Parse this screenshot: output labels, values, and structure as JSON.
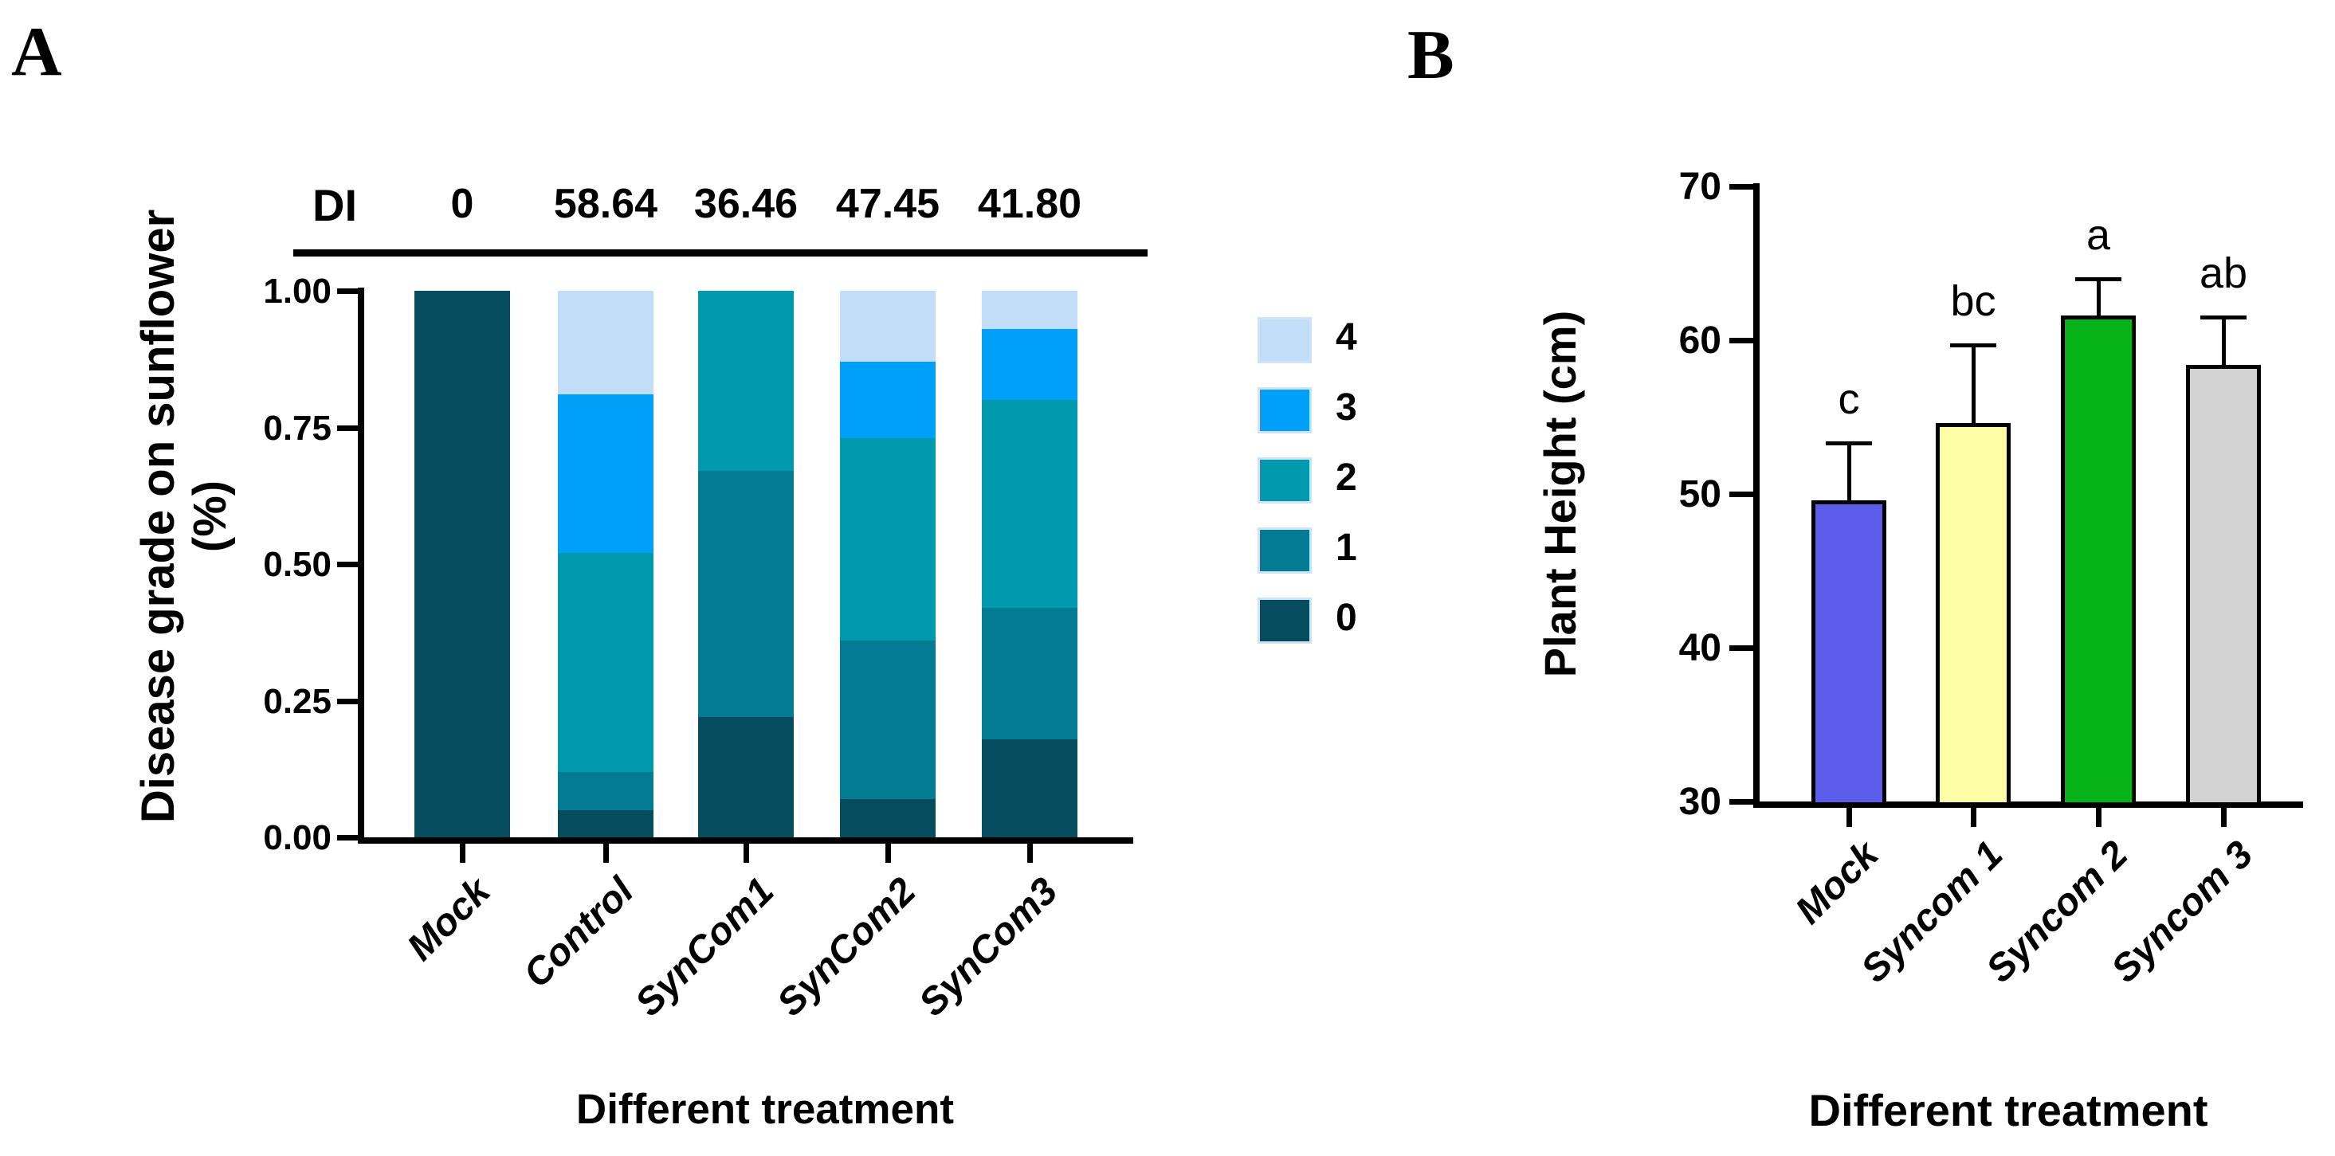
{
  "figure": {
    "panel_a_label": "A",
    "panel_b_label": "B"
  },
  "chart_data": [
    {
      "type": "stacked_bar",
      "title": "",
      "xlabel": "Different treatment",
      "ylabel": "Disease grade on sunflower",
      "ylabel_line2": "(%)",
      "ylim": [
        0,
        1
      ],
      "grid": false,
      "legend_position": "right",
      "yticks": [
        {
          "label": "1.00",
          "value": 1.0
        },
        {
          "label": "0.75",
          "value": 0.75
        },
        {
          "label": "0.50",
          "value": 0.5
        },
        {
          "label": "0.25",
          "value": 0.25
        },
        {
          "label": "0.00",
          "value": 0.0
        }
      ],
      "categories": [
        "Mock",
        "Control",
        "SynCom1",
        "SynCom2",
        "SynCom3"
      ],
      "di_header": "DI",
      "di_values": [
        "0",
        "58.64",
        "36.46",
        "47.45",
        "41.80"
      ],
      "series": [
        {
          "name": "0",
          "color": "#054c5e",
          "values": [
            1.0,
            0.05,
            0.22,
            0.07,
            0.18
          ]
        },
        {
          "name": "1",
          "color": "#037b92",
          "values": [
            0,
            0.07,
            0.45,
            0.29,
            0.24
          ]
        },
        {
          "name": "2",
          "color": "#0099ae",
          "values": [
            0,
            0.4,
            0.33,
            0.37,
            0.38
          ]
        },
        {
          "name": "3",
          "color": "#00a0f8",
          "values": [
            0,
            0.29,
            0,
            0.14,
            0.13
          ]
        },
        {
          "name": "4",
          "color": "#c2ddf7",
          "values": [
            0,
            0.19,
            0,
            0.13,
            0.07
          ]
        }
      ],
      "legend": [
        {
          "label": "4",
          "color": "#c2ddf7"
        },
        {
          "label": "3",
          "color": "#00a0f8"
        },
        {
          "label": "2",
          "color": "#0099ae"
        },
        {
          "label": "1",
          "color": "#037b92"
        },
        {
          "label": "0",
          "color": "#054c5e"
        }
      ]
    },
    {
      "type": "bar",
      "title": "",
      "xlabel": "Different treatment",
      "ylabel": "Plant Height (cm)",
      "ylim": [
        30,
        70
      ],
      "grid": false,
      "yticks": [
        {
          "label": "70",
          "value": 70
        },
        {
          "label": "60",
          "value": 60
        },
        {
          "label": "50",
          "value": 50
        },
        {
          "label": "40",
          "value": 40
        },
        {
          "label": "30",
          "value": 30
        }
      ],
      "categories": [
        "Mock",
        "Syncom 1",
        "Syncom 2",
        "Syncom 3"
      ],
      "values": [
        49.6,
        54.6,
        61.6,
        58.4
      ],
      "errors": [
        3.7,
        5.1,
        2.4,
        3.1
      ],
      "sig_letters": [
        "c",
        "bc",
        "a",
        "ab"
      ],
      "bar_colors": [
        "#5b5cea",
        "#fdfda5",
        "#06b41a",
        "#d2d2d2"
      ],
      "bar_border_color": "#000000"
    }
  ]
}
